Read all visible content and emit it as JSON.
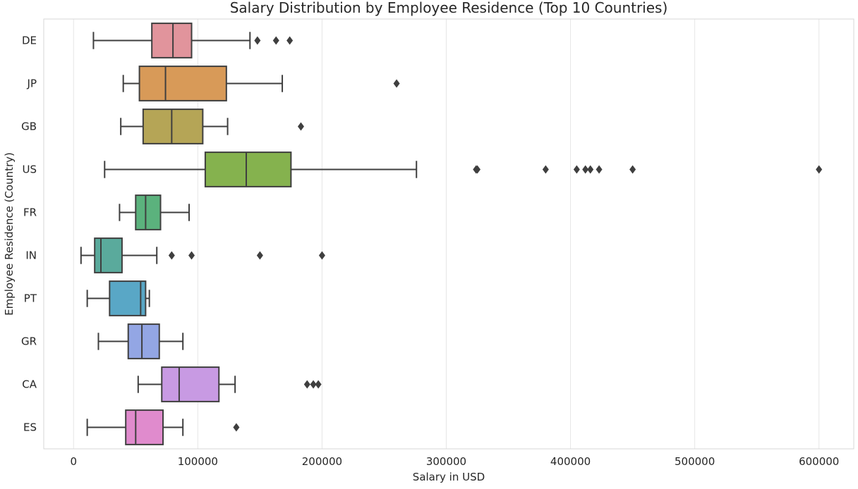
{
  "chart_data": {
    "type": "boxplot",
    "orientation": "horizontal",
    "title": "Salary Distribution by Employee Residence (Top 10 Countries)",
    "xlabel": "Salary in USD",
    "ylabel": "Employee Residence (Country)",
    "xlim": [
      -24000,
      628000
    ],
    "x_ticks": [
      0,
      100000,
      200000,
      300000,
      400000,
      500000,
      600000
    ],
    "grid": "vertical",
    "legend": "none",
    "boxes": [
      {
        "category": "DE",
        "color": "#e1949c",
        "whisker_low": 16000,
        "q1": 63000,
        "median": 80000,
        "q3": 95000,
        "whisker_high": 142000,
        "outliers": [
          148000,
          163000,
          174000
        ]
      },
      {
        "category": "JP",
        "color": "#d89a58",
        "whisker_low": 40000,
        "q1": 53000,
        "median": 74000,
        "q3": 123000,
        "whisker_high": 168000,
        "outliers": [
          260000
        ]
      },
      {
        "category": "GB",
        "color": "#b5a556",
        "whisker_low": 38000,
        "q1": 56000,
        "median": 79000,
        "q3": 104000,
        "whisker_high": 124000,
        "outliers": [
          183000
        ]
      },
      {
        "category": "US",
        "color": "#85b24e",
        "whisker_low": 25000,
        "q1": 106000,
        "median": 139000,
        "q3": 175000,
        "whisker_high": 276000,
        "outliers": [
          324000,
          325000,
          380000,
          405000,
          412000,
          416000,
          423000,
          450000,
          600000
        ]
      },
      {
        "category": "FR",
        "color": "#5bb27d",
        "whisker_low": 37000,
        "q1": 50000,
        "median": 58000,
        "q3": 70000,
        "whisker_high": 93000,
        "outliers": []
      },
      {
        "category": "IN",
        "color": "#5aaa9c",
        "whisker_low": 6000,
        "q1": 17000,
        "median": 22000,
        "q3": 39000,
        "whisker_high": 67000,
        "outliers": [
          79000,
          95000,
          150000,
          200000
        ]
      },
      {
        "category": "PT",
        "color": "#59a7c6",
        "whisker_low": 11000,
        "q1": 29000,
        "median": 54000,
        "q3": 58000,
        "whisker_high": 61000,
        "outliers": []
      },
      {
        "category": "GR",
        "color": "#93a6e4",
        "whisker_low": 20000,
        "q1": 44000,
        "median": 55000,
        "q3": 69000,
        "whisker_high": 88000,
        "outliers": []
      },
      {
        "category": "CA",
        "color": "#c89ae3",
        "whisker_low": 52000,
        "q1": 71000,
        "median": 85000,
        "q3": 117000,
        "whisker_high": 130000,
        "outliers": [
          188000,
          193000,
          197000
        ]
      },
      {
        "category": "ES",
        "color": "#e08bcd",
        "whisker_low": 11000,
        "q1": 42000,
        "median": 50000,
        "q3": 72000,
        "whisker_high": 88000,
        "outliers": [
          131000
        ]
      }
    ]
  }
}
